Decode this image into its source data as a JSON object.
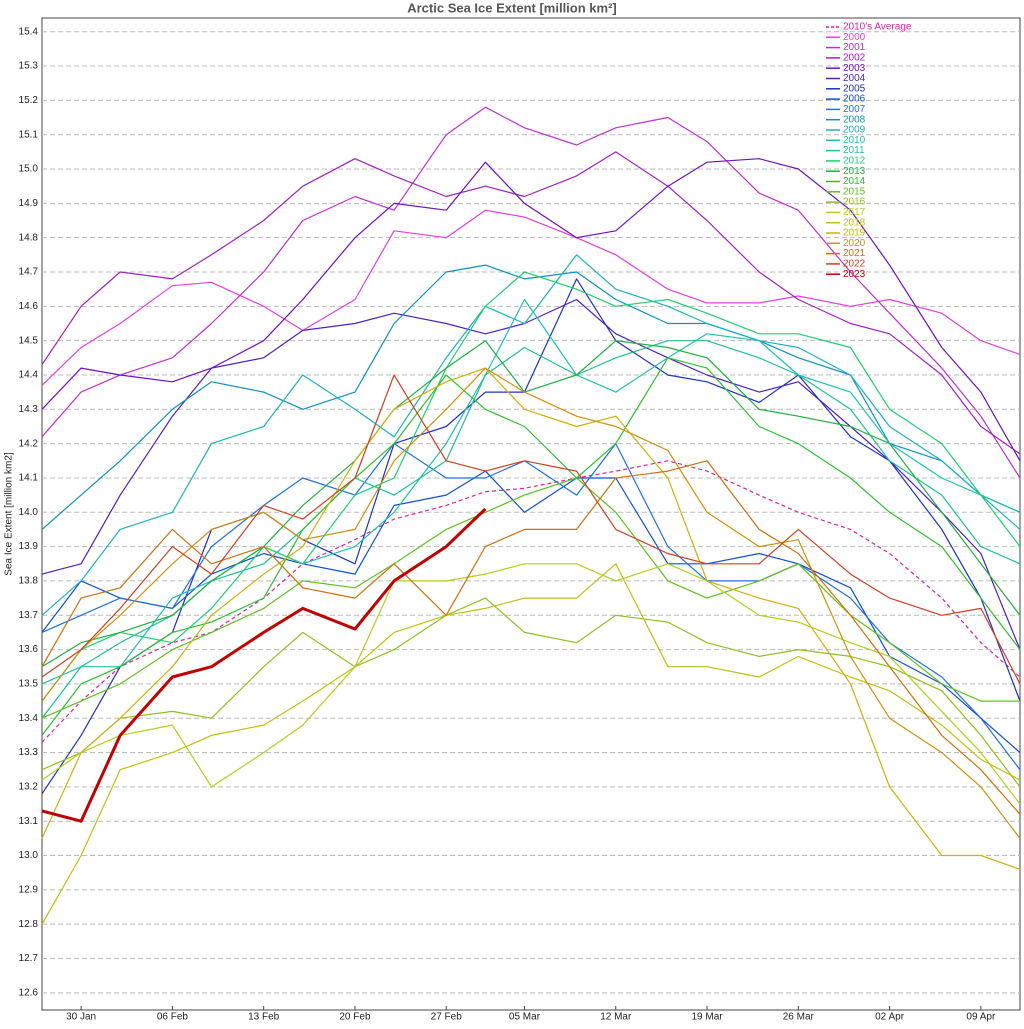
{
  "chart_data": {
    "type": "line",
    "title": "Arctic Sea Ice Extent [million km²]",
    "y_label": "Sea Ice Extent [million km2]",
    "x": [
      "27 Jan",
      "30 Jan",
      "02 Feb",
      "06 Feb",
      "09 Feb",
      "13 Feb",
      "16 Feb",
      "20 Feb",
      "23 Feb",
      "27 Feb",
      "02 Mar",
      "05 Mar",
      "09 Mar",
      "12 Mar",
      "16 Mar",
      "19 Mar",
      "23 Mar",
      "26 Mar",
      "30 Mar",
      "02 Apr",
      "06 Apr",
      "09 Apr",
      "12 Apr"
    ],
    "xlim": [
      "27 Jan",
      "12 Apr"
    ],
    "xticks": [
      "30 Jan",
      "06 Feb",
      "13 Feb",
      "20 Feb",
      "27 Feb",
      "05 Mar",
      "12 Mar",
      "19 Mar",
      "26 Mar",
      "02 Apr",
      "09 Apr"
    ],
    "ylim": [
      12.55,
      15.44
    ],
    "yticks": [
      12.6,
      12.7,
      12.8,
      12.9,
      {
        "value": 13,
        "label": "13.0"
      },
      13.1,
      13.2,
      13.3,
      13.4,
      13.5,
      13.6,
      13.7,
      13.8,
      13.9,
      {
        "value": 14,
        "label": "14.0"
      },
      14.1,
      14.2,
      14.3,
      14.4,
      14.5,
      14.6,
      14.7,
      14.8,
      14.9,
      {
        "value": 15,
        "label": "15.0"
      },
      15.1,
      15.2,
      15.3,
      15.4
    ],
    "grid": true,
    "legend": "top-right",
    "series": [
      {
        "name": "2010's Average",
        "color": "#e020a0",
        "dash": true,
        "values": [
          13.33,
          13.45,
          13.55,
          13.62,
          13.65,
          13.75,
          13.85,
          13.92,
          13.98,
          14.02,
          14.06,
          14.07,
          14.1,
          14.12,
          14.15,
          14.12,
          14.05,
          14.0,
          13.95,
          13.88,
          13.75,
          13.62,
          13.52
        ]
      },
      {
        "name": "2000",
        "color": "#e040e0",
        "values": [
          14.37,
          14.48,
          14.55,
          14.66,
          14.67,
          14.6,
          14.53,
          14.62,
          14.82,
          14.8,
          14.88,
          14.86,
          14.8,
          14.75,
          14.65,
          14.61,
          14.61,
          14.63,
          14.6,
          14.62,
          14.58,
          14.5,
          14.46
        ]
      },
      {
        "name": "2001",
        "color": "#c030d0",
        "values": [
          14.22,
          14.35,
          14.4,
          14.45,
          14.55,
          14.7,
          14.85,
          14.92,
          14.88,
          15.1,
          15.18,
          15.12,
          15.07,
          15.12,
          15.15,
          15.08,
          14.93,
          14.88,
          14.7,
          14.58,
          14.42,
          14.28,
          14.1
        ]
      },
      {
        "name": "2002",
        "color": "#a020c0",
        "values": [
          14.43,
          14.6,
          14.7,
          14.68,
          14.75,
          14.85,
          14.95,
          15.03,
          14.98,
          14.92,
          14.95,
          14.92,
          14.98,
          15.05,
          14.95,
          14.85,
          14.7,
          14.62,
          14.55,
          14.52,
          14.4,
          14.25,
          14.17
        ]
      },
      {
        "name": "2003",
        "color": "#7010c0",
        "values": [
          14.3,
          14.42,
          14.4,
          14.38,
          14.42,
          14.5,
          14.62,
          14.8,
          14.9,
          14.88,
          15.02,
          14.9,
          14.8,
          14.82,
          14.95,
          15.02,
          15.03,
          15.0,
          14.88,
          14.72,
          14.48,
          14.35,
          14.15
        ]
      },
      {
        "name": "2004",
        "color": "#5020c0",
        "values": [
          13.82,
          13.85,
          14.05,
          14.28,
          14.42,
          14.45,
          14.53,
          14.55,
          14.58,
          14.55,
          14.52,
          14.55,
          14.62,
          14.52,
          14.45,
          14.4,
          14.35,
          14.38,
          14.25,
          14.15,
          14.0,
          13.88,
          13.6
        ]
      },
      {
        "name": "2005",
        "color": "#2030c0",
        "values": [
          13.18,
          13.35,
          13.55,
          13.65,
          13.95,
          14.0,
          13.92,
          13.85,
          14.2,
          14.25,
          14.35,
          14.35,
          14.68,
          14.5,
          14.4,
          14.38,
          14.32,
          14.4,
          14.22,
          14.15,
          13.95,
          13.75,
          13.45
        ]
      },
      {
        "name": "2006",
        "color": "#1050d0",
        "values": [
          13.65,
          13.8,
          13.75,
          13.72,
          13.82,
          13.88,
          13.85,
          13.82,
          14.02,
          14.05,
          14.12,
          14.0,
          14.1,
          14.1,
          13.85,
          13.85,
          13.88,
          13.85,
          13.78,
          13.58,
          13.5,
          13.4,
          13.3
        ]
      },
      {
        "name": "2007",
        "color": "#2070e0",
        "values": [
          13.65,
          13.7,
          13.75,
          13.72,
          13.9,
          14.02,
          14.1,
          14.05,
          14.2,
          14.1,
          14.1,
          14.15,
          14.05,
          14.2,
          13.9,
          13.8,
          13.8,
          13.85,
          13.75,
          13.62,
          13.52,
          13.4,
          13.25
        ]
      },
      {
        "name": "2008",
        "color": "#1090c0",
        "values": [
          13.95,
          14.05,
          14.15,
          14.3,
          14.38,
          14.35,
          14.3,
          14.35,
          14.55,
          14.7,
          14.72,
          14.68,
          14.7,
          14.62,
          14.55,
          14.55,
          14.5,
          14.45,
          14.4,
          14.2,
          14.15,
          14.05,
          14.0
        ]
      },
      {
        "name": "2009",
        "color": "#20b0c0",
        "values": [
          13.7,
          13.8,
          13.95,
          14.0,
          14.2,
          14.25,
          14.4,
          14.3,
          14.22,
          14.45,
          14.6,
          14.55,
          14.75,
          14.65,
          14.6,
          14.55,
          14.5,
          14.48,
          14.4,
          14.25,
          14.15,
          14.05,
          13.95
        ]
      },
      {
        "name": "2010",
        "color": "#20c0b0",
        "values": [
          13.5,
          13.55,
          13.55,
          13.75,
          13.8,
          13.9,
          13.85,
          13.9,
          14.0,
          14.2,
          14.4,
          14.62,
          14.4,
          14.35,
          14.45,
          14.52,
          14.5,
          14.4,
          14.35,
          14.2,
          14.1,
          14.05,
          14.0
        ]
      },
      {
        "name": "2011",
        "color": "#20c090",
        "values": [
          13.4,
          13.55,
          13.62,
          13.7,
          13.8,
          13.85,
          13.95,
          14.1,
          14.05,
          14.15,
          14.4,
          14.48,
          14.4,
          14.45,
          14.5,
          14.5,
          14.45,
          14.4,
          14.3,
          14.15,
          14.05,
          13.9,
          13.85
        ]
      },
      {
        "name": "2012",
        "color": "#20d070",
        "values": [
          13.45,
          13.6,
          13.65,
          13.62,
          13.72,
          13.9,
          13.85,
          14.05,
          14.1,
          14.42,
          14.6,
          14.7,
          14.65,
          14.6,
          14.62,
          14.58,
          14.52,
          14.52,
          14.48,
          14.3,
          14.2,
          14.05,
          13.9
        ]
      },
      {
        "name": "2013",
        "color": "#20b040",
        "values": [
          13.55,
          13.62,
          13.65,
          13.7,
          13.8,
          13.9,
          14.02,
          14.15,
          14.3,
          14.42,
          14.5,
          14.35,
          14.4,
          14.5,
          14.48,
          14.45,
          14.3,
          14.28,
          14.25,
          14.2,
          14.0,
          13.85,
          13.7
        ]
      },
      {
        "name": "2014",
        "color": "#30c030",
        "values": [
          13.35,
          13.5,
          13.55,
          13.65,
          13.68,
          13.75,
          13.95,
          14.1,
          14.2,
          14.4,
          14.3,
          14.25,
          14.1,
          14.2,
          14.45,
          14.42,
          14.25,
          14.2,
          14.1,
          14.0,
          13.9,
          13.75,
          13.6
        ]
      },
      {
        "name": "2015",
        "color": "#60c020",
        "values": [
          13.4,
          13.45,
          13.5,
          13.6,
          13.65,
          13.72,
          13.8,
          13.78,
          13.85,
          13.95,
          14.0,
          14.05,
          14.1,
          14.0,
          13.8,
          13.75,
          13.8,
          13.85,
          13.7,
          13.62,
          13.5,
          13.45,
          13.45
        ]
      },
      {
        "name": "2016",
        "color": "#90c020",
        "values": [
          13.25,
          13.3,
          13.4,
          13.42,
          13.4,
          13.55,
          13.65,
          13.55,
          13.6,
          13.7,
          13.75,
          13.65,
          13.62,
          13.7,
          13.68,
          13.62,
          13.58,
          13.6,
          13.58,
          13.55,
          13.48,
          13.35,
          13.2
        ]
      },
      {
        "name": "2017",
        "color": "#b0d020",
        "values": [
          13.22,
          13.3,
          13.35,
          13.38,
          13.2,
          13.3,
          13.38,
          13.55,
          13.8,
          13.8,
          13.82,
          13.85,
          13.85,
          13.8,
          13.85,
          13.8,
          13.7,
          13.68,
          13.62,
          13.58,
          13.42,
          13.3,
          13.15
        ]
      },
      {
        "name": "2018",
        "color": "#c0c010",
        "values": [
          12.8,
          13.0,
          13.25,
          13.3,
          13.35,
          13.38,
          13.45,
          13.55,
          13.65,
          13.7,
          13.72,
          13.75,
          13.75,
          13.85,
          13.55,
          13.55,
          13.52,
          13.58,
          13.52,
          13.48,
          13.38,
          13.28,
          13.22
        ]
      },
      {
        "name": "2019",
        "color": "#d0b010",
        "values": [
          13.05,
          13.3,
          13.4,
          13.55,
          13.7,
          13.82,
          13.9,
          14.15,
          14.3,
          14.38,
          14.42,
          14.3,
          14.25,
          14.28,
          14.1,
          13.8,
          13.75,
          13.72,
          13.5,
          13.2,
          13.0,
          13.0,
          12.96
        ]
      },
      {
        "name": "2020",
        "color": "#d09010",
        "values": [
          13.45,
          13.6,
          13.7,
          13.85,
          13.95,
          14.0,
          13.92,
          13.95,
          14.15,
          14.3,
          14.42,
          14.35,
          14.28,
          14.25,
          14.18,
          14.0,
          13.9,
          13.92,
          13.58,
          13.4,
          13.3,
          13.2,
          13.05
        ]
      },
      {
        "name": "2021",
        "color": "#d07010",
        "values": [
          13.55,
          13.75,
          13.78,
          13.95,
          13.85,
          13.9,
          13.78,
          13.75,
          13.85,
          13.7,
          13.9,
          13.95,
          13.95,
          14.1,
          14.12,
          14.15,
          13.95,
          13.88,
          13.7,
          13.55,
          13.35,
          13.25,
          13.12
        ]
      },
      {
        "name": "2022",
        "color": "#d04020",
        "values": [
          13.52,
          13.6,
          13.72,
          13.9,
          13.82,
          14.02,
          13.98,
          14.1,
          14.4,
          14.15,
          14.12,
          14.15,
          14.12,
          13.95,
          13.88,
          13.85,
          13.85,
          13.95,
          13.82,
          13.75,
          13.7,
          13.72,
          13.5
        ]
      },
      {
        "name": "2023",
        "color": "#c00000",
        "line_width": 3,
        "values": [
          13.13,
          13.1,
          13.35,
          13.52,
          13.55,
          13.65,
          13.72,
          13.66,
          13.8,
          13.9,
          14.01,
          null,
          null,
          null,
          null,
          null,
          null,
          null,
          null,
          null,
          null,
          null,
          null
        ]
      }
    ]
  }
}
